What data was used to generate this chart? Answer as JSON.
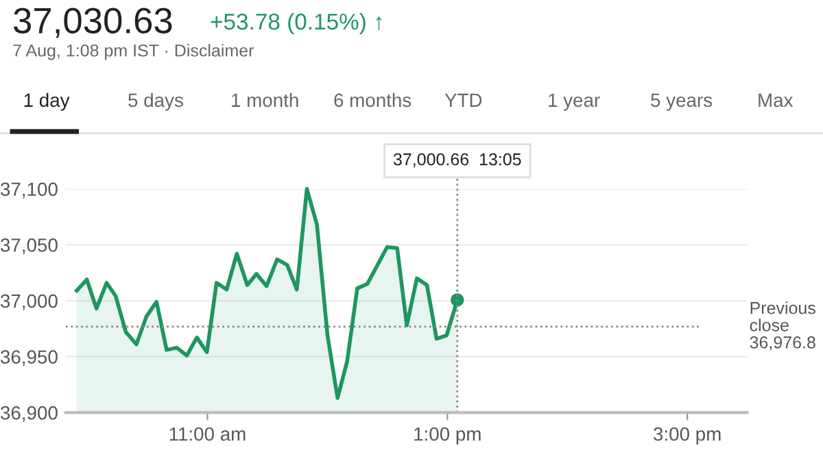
{
  "chart_data": {
    "type": "area",
    "title": "37,030.63",
    "subtitle": "+53.78 (0.15%) ↑",
    "annotations": [
      "7 Aug, 1:08 pm IST · Disclaimer",
      "1 day",
      "5 days",
      "1 month",
      "6 months",
      "YTD",
      "1 year",
      "5 years",
      "Max",
      "37,000.66  13:05"
    ],
    "series": [
      {
        "color": "#1e9660",
        "x": [
          9.911,
          9.995,
          10.075,
          10.16,
          10.236,
          10.32,
          10.408,
          10.492,
          10.576,
          10.66,
          10.744,
          10.828,
          10.912,
          10.996,
          11.076,
          11.161,
          11.245,
          11.332,
          11.409,
          11.493,
          11.581,
          11.665,
          11.745,
          11.829,
          11.913,
          12.001,
          12.085,
          12.165,
          12.249,
          12.333,
          12.413,
          12.498,
          12.582,
          12.662,
          12.746,
          12.83,
          12.91,
          12.994,
          13.083
        ],
        "values": [
          37009,
          37019,
          36993,
          37016,
          37004,
          36972,
          36961,
          36986,
          36999,
          36956,
          36958,
          36951,
          36967,
          36954,
          37016,
          37010,
          37042,
          37014,
          37024,
          37013,
          37037,
          37032,
          37010,
          37100,
          37068,
          36969,
          36913,
          36946,
          37011,
          37015,
          37031,
          37048,
          37047,
          36978,
          37020,
          37014,
          36966,
          36969,
          37000.66
        ]
      }
    ],
    "ref_lines": [
      {
        "axis": "y",
        "value": 36976.8,
        "label": "Previous close 36,976.8",
        "color": "#888888",
        "line_style": "dotted"
      },
      {
        "axis": "x",
        "value": 13.083,
        "label": null,
        "color": "#888888",
        "line_style": "dotted"
      }
    ],
    "xlim": [
      9.82,
      15.5
    ],
    "ylim": [
      36900,
      37100
    ],
    "xticks": [
      {
        "value": 11,
        "label": "11:00 am"
      },
      {
        "value": 13,
        "label": "1:00 pm"
      },
      {
        "value": 15,
        "label": "3:00 pm"
      }
    ],
    "yticks": [
      {
        "value": 36900,
        "label": "36,900"
      },
      {
        "value": 36950,
        "label": "36,950"
      },
      {
        "value": 37000,
        "label": "37,000"
      },
      {
        "value": 37050,
        "label": "37,050"
      },
      {
        "value": 37100,
        "label": "37,100"
      }
    ],
    "grid": "y"
  }
}
